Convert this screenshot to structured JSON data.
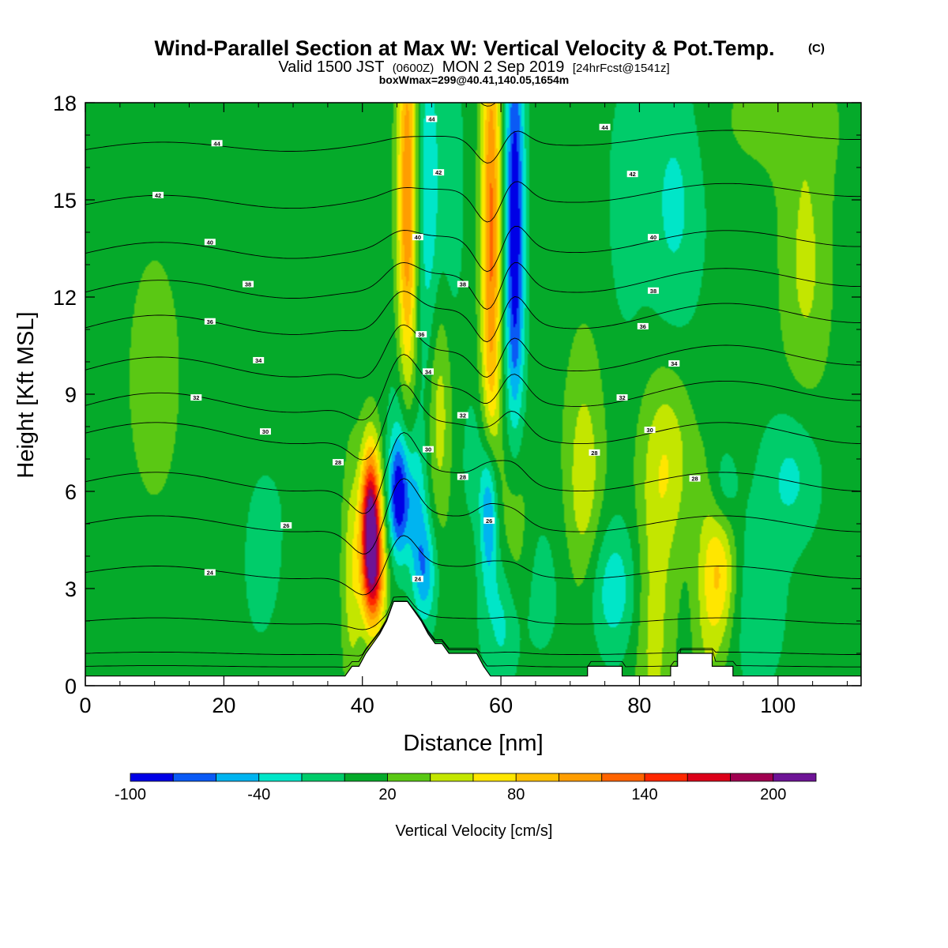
{
  "title": {
    "main": "Wind-Parallel Section at Max W: Vertical Velocity & Pot.Temp.",
    "copyright": "(C)",
    "valid_prefix": "Valid 1500 JST",
    "valid_utc": "(0600Z)",
    "valid_date": "MON 2 Sep 2019",
    "forecast": "[24hrFcst@1541z]",
    "box_info": "boxWmax=299@40.41,140.05,1654m"
  },
  "chart_data": {
    "type": "heatmap",
    "xlabel": "Distance [nm]",
    "ylabel": "Height [Kft MSL]",
    "xlim": [
      0,
      112
    ],
    "ylim": [
      0,
      18
    ],
    "x_ticks": [
      0,
      20,
      40,
      60,
      80,
      100
    ],
    "y_ticks": [
      0,
      3,
      6,
      9,
      12,
      15,
      18
    ],
    "colorbar": {
      "label": "Vertical Velocity [cm/s]",
      "levels": [
        -100,
        -80,
        -60,
        -40,
        -20,
        0,
        20,
        40,
        60,
        80,
        100,
        120,
        140,
        160,
        180,
        200,
        220
      ],
      "tick_values": [
        -100,
        -40,
        20,
        80,
        140,
        200
      ],
      "colors": [
        "#0000e6",
        "#0a5af5",
        "#00b4f0",
        "#00e6c8",
        "#00cc6a",
        "#05aa2a",
        "#5ac814",
        "#c3e600",
        "#ffe600",
        "#ffc000",
        "#ff9d00",
        "#ff6400",
        "#ff2800",
        "#dc0019",
        "#a00050",
        "#6e1496"
      ]
    },
    "background_w": 10,
    "w_features": [
      {
        "x": 10,
        "y": 9.5,
        "sx": 6,
        "sy": 6,
        "w": 12
      },
      {
        "x": 25,
        "y": 4,
        "sx": 4,
        "sy": 4,
        "w": -12
      },
      {
        "x": 32,
        "y": 12,
        "sx": 3,
        "sy": 6,
        "w": -8
      },
      {
        "x": 41.2,
        "y": 5,
        "sx": 1.0,
        "sy": 1.6,
        "w": 210
      },
      {
        "x": 41.8,
        "y": 3.2,
        "sx": 1.2,
        "sy": 1.2,
        "w": 90
      },
      {
        "x": 38.5,
        "y": 3.5,
        "sx": 1.0,
        "sy": 2.5,
        "w": 45
      },
      {
        "x": 45.2,
        "y": 5.8,
        "sx": 1.0,
        "sy": 1.3,
        "w": -100
      },
      {
        "x": 47.5,
        "y": 5.5,
        "sx": 1.2,
        "sy": 1.5,
        "w": -50
      },
      {
        "x": 49,
        "y": 3.5,
        "sx": 1.2,
        "sy": 1.2,
        "w": -60
      },
      {
        "x": 46,
        "y": 8,
        "sx": 1.5,
        "sy": 2,
        "w": -30
      },
      {
        "x": 51,
        "y": 8.5,
        "sx": 1.2,
        "sy": 2.5,
        "w": 45
      },
      {
        "x": 46.5,
        "y": 15,
        "sx": 1.0,
        "sy": 5,
        "w": 110
      },
      {
        "x": 49.5,
        "y": 15,
        "sx": 1.3,
        "sy": 4.5,
        "w": -45
      },
      {
        "x": 53,
        "y": 15.5,
        "sx": 1.2,
        "sy": 3,
        "w": -25
      },
      {
        "x": 58.6,
        "y": 14,
        "sx": 1.0,
        "sy": 5.5,
        "w": 115
      },
      {
        "x": 62,
        "y": 14,
        "sx": 1.0,
        "sy": 5,
        "w": -110
      },
      {
        "x": 58.3,
        "y": 5.4,
        "sx": 0.9,
        "sy": 1.6,
        "w": -95
      },
      {
        "x": 56,
        "y": 7,
        "sx": 1.2,
        "sy": 1.5,
        "w": -20
      },
      {
        "x": 62,
        "y": 5,
        "sx": 1.3,
        "sy": 2.5,
        "w": 45
      },
      {
        "x": 60,
        "y": 2,
        "sx": 2,
        "sy": 1.5,
        "w": -40
      },
      {
        "x": 66,
        "y": 3,
        "sx": 3,
        "sy": 2,
        "w": -15
      },
      {
        "x": 76,
        "y": 3,
        "sx": 3,
        "sy": 1.5,
        "w": -45
      },
      {
        "x": 72,
        "y": 6,
        "sx": 2,
        "sy": 3,
        "w": 45
      },
      {
        "x": 84,
        "y": 7,
        "sx": 2.5,
        "sy": 2,
        "w": 45
      },
      {
        "x": 82,
        "y": 2,
        "sx": 2,
        "sy": 3,
        "w": 40
      },
      {
        "x": 90,
        "y": 3,
        "sx": 1.5,
        "sy": 2.5,
        "w": 40
      },
      {
        "x": 92,
        "y": 3.5,
        "sx": 1.5,
        "sy": 1.5,
        "w": 55
      },
      {
        "x": 97,
        "y": 2.5,
        "sx": 3,
        "sy": 2,
        "w": -25
      },
      {
        "x": 102,
        "y": 6.5,
        "sx": 3,
        "sy": 1.5,
        "w": -35
      },
      {
        "x": 92,
        "y": 6,
        "sx": 1.5,
        "sy": 1,
        "w": -30
      },
      {
        "x": 85,
        "y": 15,
        "sx": 3,
        "sy": 3,
        "w": -35
      },
      {
        "x": 78,
        "y": 15,
        "sx": 2,
        "sy": 3,
        "w": -20
      },
      {
        "x": 104,
        "y": 13,
        "sx": 2.5,
        "sy": 3,
        "w": 35
      },
      {
        "x": 100,
        "y": 17.5,
        "sx": 8,
        "sy": 1.5,
        "w": 15
      },
      {
        "x": 20,
        "y": 17.5,
        "sx": 8,
        "sy": 1,
        "w": -10
      }
    ],
    "terrain": [
      [
        0,
        0.3
      ],
      [
        37.5,
        0.3
      ],
      [
        38.5,
        0.6
      ],
      [
        39.5,
        0.6
      ],
      [
        40.5,
        1.0
      ],
      [
        41.5,
        1.3
      ],
      [
        42.5,
        1.6
      ],
      [
        43.5,
        2.0
      ],
      [
        44.5,
        2.6
      ],
      [
        46.5,
        2.6
      ],
      [
        47.5,
        2.3
      ],
      [
        48.5,
        2.0
      ],
      [
        49.5,
        1.6
      ],
      [
        50.5,
        1.3
      ],
      [
        51.5,
        1.3
      ],
      [
        52.5,
        1.0
      ],
      [
        56.5,
        1.0
      ],
      [
        57.5,
        0.6
      ],
      [
        58.5,
        0.3
      ],
      [
        72.5,
        0.3
      ],
      [
        72.5,
        0.6
      ],
      [
        77.5,
        0.6
      ],
      [
        77.5,
        0.3
      ],
      [
        84.5,
        0.3
      ],
      [
        84.5,
        0.6
      ],
      [
        85.5,
        0.6
      ],
      [
        85.5,
        1.0
      ],
      [
        90.5,
        1.0
      ],
      [
        90.5,
        0.6
      ],
      [
        93.5,
        0.6
      ],
      [
        93.5,
        0.3
      ],
      [
        112,
        0.3
      ]
    ],
    "isentropes": {
      "levels": [
        18,
        20,
        22,
        24,
        26,
        28,
        30,
        32,
        34,
        36,
        38,
        40,
        42,
        44,
        46
      ],
      "base_heights": [
        0.6,
        1.0,
        2.0,
        3.5,
        5.0,
        6.3,
        7.8,
        8.9,
        10.0,
        11.3,
        12.4,
        13.6,
        15.1,
        16.8,
        18.4
      ],
      "labels": [
        {
          "x": 18,
          "y": 3.5,
          "text": "24"
        },
        {
          "x": 48,
          "y": 3.3,
          "text": "24"
        },
        {
          "x": 29,
          "y": 4.95,
          "text": "26"
        },
        {
          "x": 58.3,
          "y": 5.1,
          "text": "26"
        },
        {
          "x": 36.5,
          "y": 6.9,
          "text": "28"
        },
        {
          "x": 54.5,
          "y": 6.45,
          "text": "28"
        },
        {
          "x": 73.5,
          "y": 7.2,
          "text": "28"
        },
        {
          "x": 88,
          "y": 6.4,
          "text": "28"
        },
        {
          "x": 26,
          "y": 7.85,
          "text": "30"
        },
        {
          "x": 49.5,
          "y": 7.3,
          "text": "30"
        },
        {
          "x": 81.5,
          "y": 7.9,
          "text": "30"
        },
        {
          "x": 16,
          "y": 8.9,
          "text": "32"
        },
        {
          "x": 54.5,
          "y": 8.35,
          "text": "32"
        },
        {
          "x": 77.5,
          "y": 8.9,
          "text": "32"
        },
        {
          "x": 25,
          "y": 10.05,
          "text": "34"
        },
        {
          "x": 49.5,
          "y": 9.7,
          "text": "34"
        },
        {
          "x": 85,
          "y": 9.95,
          "text": "34"
        },
        {
          "x": 18,
          "y": 11.25,
          "text": "36"
        },
        {
          "x": 48.5,
          "y": 10.85,
          "text": "36"
        },
        {
          "x": 80.5,
          "y": 11.1,
          "text": "36"
        },
        {
          "x": 23.5,
          "y": 12.4,
          "text": "38"
        },
        {
          "x": 54.5,
          "y": 12.4,
          "text": "38"
        },
        {
          "x": 82,
          "y": 12.2,
          "text": "38"
        },
        {
          "x": 18,
          "y": 13.7,
          "text": "40"
        },
        {
          "x": 48,
          "y": 13.85,
          "text": "40"
        },
        {
          "x": 82,
          "y": 13.85,
          "text": "40"
        },
        {
          "x": 10.5,
          "y": 15.15,
          "text": "42"
        },
        {
          "x": 51,
          "y": 15.85,
          "text": "42"
        },
        {
          "x": 79,
          "y": 15.8,
          "text": "42"
        },
        {
          "x": 19,
          "y": 16.75,
          "text": "44"
        },
        {
          "x": 50,
          "y": 17.5,
          "text": "44"
        },
        {
          "x": 75,
          "y": 17.25,
          "text": "44"
        }
      ]
    }
  }
}
